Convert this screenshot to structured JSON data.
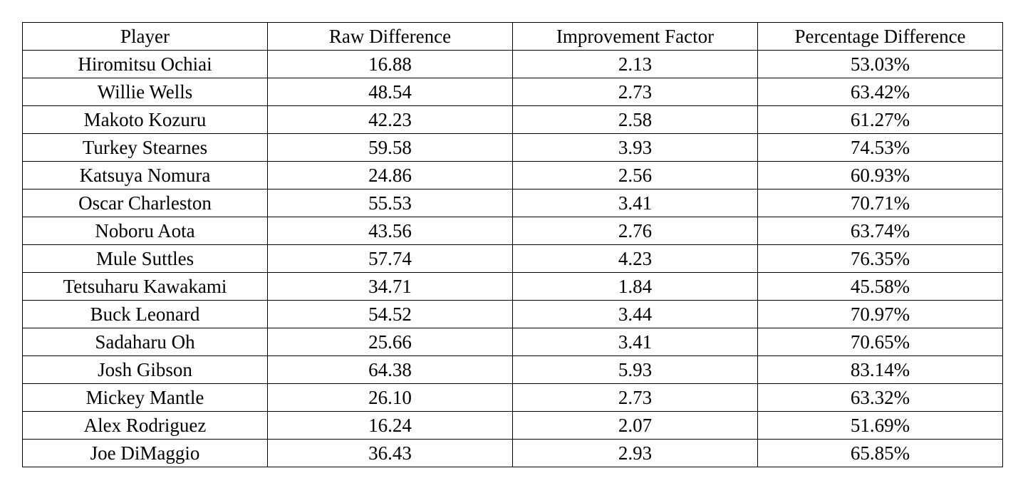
{
  "table": {
    "headers": [
      "Player",
      "Raw Difference",
      "Improvement Factor",
      "Percentage Difference"
    ],
    "rows": [
      [
        "Hiromitsu Ochiai",
        "16.88",
        "2.13",
        "53.03%"
      ],
      [
        "Willie Wells",
        "48.54",
        "2.73",
        "63.42%"
      ],
      [
        "Makoto Kozuru",
        "42.23",
        "2.58",
        "61.27%"
      ],
      [
        "Turkey Stearnes",
        "59.58",
        "3.93",
        "74.53%"
      ],
      [
        "Katsuya Nomura",
        "24.86",
        "2.56",
        "60.93%"
      ],
      [
        "Oscar Charleston",
        "55.53",
        "3.41",
        "70.71%"
      ],
      [
        "Noboru Aota",
        "43.56",
        "2.76",
        "63.74%"
      ],
      [
        "Mule Suttles",
        "57.74",
        "4.23",
        "76.35%"
      ],
      [
        "Tetsuharu Kawakami",
        "34.71",
        "1.84",
        "45.58%"
      ],
      [
        "Buck Leonard",
        "54.52",
        "3.44",
        "70.97%"
      ],
      [
        "Sadaharu Oh",
        "25.66",
        "3.41",
        "70.65%"
      ],
      [
        "Josh Gibson",
        "64.38",
        "5.93",
        "83.14%"
      ],
      [
        "Mickey Mantle",
        "26.10",
        "2.73",
        "63.32%"
      ],
      [
        "Alex Rodriguez",
        "16.24",
        "2.07",
        "51.69%"
      ],
      [
        "Joe DiMaggio",
        "36.43",
        "2.93",
        "65.85%"
      ]
    ]
  }
}
